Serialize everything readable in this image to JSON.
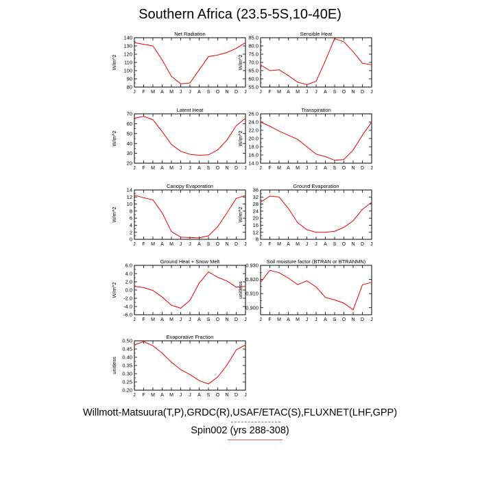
{
  "title": "Southern Africa (23.5-5S,10-40E)",
  "caption": "Willmott-Matsuura(T,P),GRDC(R),USAF/ETAC(S),FLUXNET(LHF,GPP)",
  "run_label": "Spin002 (yrs 288-308)",
  "colors": {
    "line": "#ee0000",
    "axis": "#000000",
    "run_underline": "#e06060"
  },
  "chart_data": [
    {
      "type": "line",
      "title": "Net Radiation",
      "ylabel": "W/m^2",
      "x": [
        "J",
        "F",
        "M",
        "A",
        "M",
        "J",
        "J",
        "A",
        "S",
        "O",
        "N",
        "D",
        "J"
      ],
      "ylim": [
        80,
        140
      ],
      "yticks": [
        80,
        90,
        100,
        110,
        120,
        130,
        140
      ],
      "ytick_labels": [
        "80",
        "90",
        "100",
        "110",
        "120",
        "130",
        "140"
      ],
      "series": [
        {
          "values": [
            134,
            132,
            130,
            113,
            93,
            84,
            85,
            101,
            117,
            119,
            122,
            127,
            134
          ]
        }
      ]
    },
    {
      "type": "line",
      "title": "Sensible Heat",
      "ylabel": "W/m^2",
      "x": [
        "J",
        "F",
        "M",
        "A",
        "M",
        "J",
        "J",
        "A",
        "S",
        "O",
        "N",
        "D",
        "J"
      ],
      "ylim": [
        55,
        85
      ],
      "yticks": [
        55,
        60,
        65,
        70,
        75,
        80,
        85
      ],
      "ytick_labels": [
        "55.0",
        "60.0",
        "65.0",
        "70.0",
        "75.0",
        "80.0",
        "85.0"
      ],
      "series": [
        {
          "values": [
            68.5,
            65,
            65.5,
            62,
            58,
            56.5,
            58.5,
            71,
            84.5,
            82.5,
            76.5,
            69.5,
            68.5
          ]
        }
      ]
    },
    {
      "type": "line",
      "title": "Latent Heat",
      "ylabel": "W/m^2",
      "x": [
        "J",
        "F",
        "M",
        "A",
        "M",
        "J",
        "J",
        "A",
        "S",
        "O",
        "N",
        "D",
        "J"
      ],
      "ylim": [
        20,
        70
      ],
      "yticks": [
        20,
        30,
        40,
        50,
        60,
        70
      ],
      "ytick_labels": [
        "20",
        "30",
        "40",
        "50",
        "60",
        "70"
      ],
      "series": [
        {
          "values": [
            65.5,
            67.5,
            64,
            52,
            39,
            32,
            29,
            28,
            28.5,
            33.5,
            43.5,
            58,
            65.5
          ]
        }
      ]
    },
    {
      "type": "line",
      "title": "Transpiration",
      "ylabel": "W/m^2",
      "x": [
        "J",
        "F",
        "M",
        "A",
        "M",
        "J",
        "J",
        "A",
        "S",
        "O",
        "N",
        "D",
        "J"
      ],
      "ylim": [
        14,
        26
      ],
      "yticks": [
        14,
        16,
        18,
        20,
        22,
        24,
        26
      ],
      "ytick_labels": [
        "14.0",
        "16.0",
        "18.0",
        "20.0",
        "22.0",
        "24.0",
        "26.0"
      ],
      "series": [
        {
          "values": [
            24,
            23,
            21.8,
            20.8,
            19.8,
            18,
            16.2,
            15.6,
            14.7,
            14.9,
            17.2,
            20.8,
            24
          ]
        }
      ]
    },
    {
      "type": "line",
      "title": "Canopy Evaporation",
      "ylabel": "W/m^2",
      "x": [
        "J",
        "F",
        "M",
        "A",
        "M",
        "J",
        "J",
        "A",
        "S",
        "O",
        "N",
        "D",
        "J"
      ],
      "ylim": [
        0,
        14
      ],
      "yticks": [
        0,
        2,
        4,
        6,
        8,
        10,
        12,
        14
      ],
      "ytick_labels": [
        "0",
        "2",
        "4",
        "6",
        "8",
        "10",
        "12",
        "14"
      ],
      "series": [
        {
          "values": [
            12.5,
            11.8,
            11.2,
            7.5,
            2.2,
            0.6,
            0.5,
            0.4,
            1,
            3.6,
            7.5,
            11.6,
            12.4
          ]
        }
      ]
    },
    {
      "type": "line",
      "title": "Ground Evaporation",
      "ylabel": "W/m^2",
      "x": [
        "J",
        "F",
        "M",
        "A",
        "M",
        "J",
        "J",
        "A",
        "S",
        "O",
        "N",
        "D",
        "J"
      ],
      "ylim": [
        8,
        36
      ],
      "yticks": [
        8,
        12,
        16,
        20,
        24,
        28,
        32,
        36
      ],
      "ytick_labels": [
        "8",
        "12",
        "16",
        "20",
        "24",
        "28",
        "32",
        "36"
      ],
      "series": [
        {
          "values": [
            29,
            32.5,
            32,
            25.5,
            17.5,
            13.5,
            12,
            12,
            12.6,
            14.8,
            18.5,
            25,
            29
          ]
        }
      ]
    },
    {
      "type": "line",
      "title": "Ground Heat + Snow Melt",
      "ylabel": "W/m^2",
      "x": [
        "J",
        "F",
        "M",
        "A",
        "M",
        "J",
        "J",
        "A",
        "S",
        "O",
        "N",
        "D",
        "J"
      ],
      "ylim": [
        -6,
        6
      ],
      "yticks": [
        -6,
        -4,
        -2,
        0,
        2,
        4,
        6
      ],
      "ytick_labels": [
        "-6.0",
        "-4.0",
        "-2.0",
        "0.0",
        "2.0",
        "4.0",
        "6.0"
      ],
      "series": [
        {
          "values": [
            0.9,
            0.6,
            -0.1,
            -1.7,
            -3.7,
            -4.4,
            -2.5,
            1.7,
            4.4,
            3.1,
            2.2,
            0.7,
            0.9
          ]
        }
      ]
    },
    {
      "type": "line",
      "title": "Soil moisture factor (BTRAN or BTRANMN)",
      "ylabel": "unitless",
      "x": [
        "J",
        "F",
        "M",
        "A",
        "M",
        "J",
        "J",
        "A",
        "S",
        "O",
        "N",
        "D",
        "J"
      ],
      "ylim": [
        0.895,
        0.93
      ],
      "yticks": [
        0.9,
        0.91,
        0.92,
        0.93
      ],
      "ytick_labels": [
        "0.900",
        "0.910",
        "0.920",
        "0.930"
      ],
      "series": [
        {
          "values": [
            0.918,
            0.9265,
            0.9248,
            0.921,
            0.9163,
            0.919,
            0.9147,
            0.9073,
            0.9055,
            0.9032,
            0.8985,
            0.9162,
            0.918
          ]
        }
      ]
    },
    {
      "type": "line",
      "title": "Evaporative Fraction",
      "ylabel": "unitless",
      "x": [
        "J",
        "F",
        "M",
        "A",
        "M",
        "J",
        "J",
        "A",
        "S",
        "O",
        "N",
        "D",
        "J"
      ],
      "ylim": [
        0.2,
        0.5
      ],
      "yticks": [
        0.2,
        0.25,
        0.3,
        0.35,
        0.4,
        0.45,
        0.5
      ],
      "ytick_labels": [
        "0.20",
        "0.25",
        "0.30",
        "0.35",
        "0.40",
        "0.45",
        "0.50"
      ],
      "series": [
        {
          "values": [
            0.475,
            0.495,
            0.47,
            0.425,
            0.37,
            0.325,
            0.295,
            0.258,
            0.238,
            0.28,
            0.352,
            0.445,
            0.475
          ]
        }
      ]
    }
  ]
}
